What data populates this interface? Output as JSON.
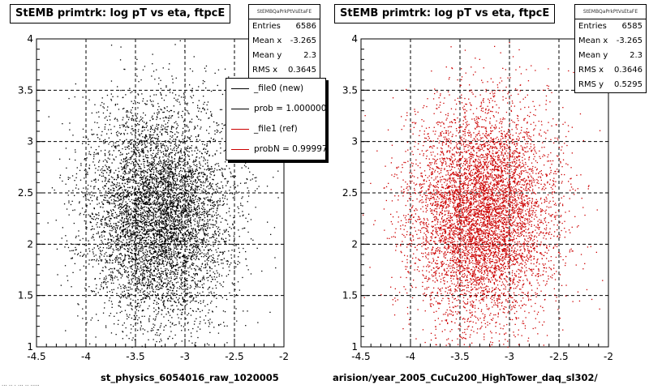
{
  "panels": {
    "left": {
      "title": "StEMB primtrk: log pT vs eta, ftpcE",
      "stats": {
        "name": "StEMBQaPrkPtVsEtaFE",
        "rows": [
          {
            "label": "Entries",
            "value": "6586"
          },
          {
            "label": "Mean x",
            "value": "-3.265"
          },
          {
            "label": "Mean y",
            "value": "2.3"
          },
          {
            "label": "RMS x",
            "value": "0.3645"
          }
        ]
      },
      "legend": [
        {
          "label": "_file0 (new)",
          "color": "#000000"
        },
        {
          "label": "prob = 1.000000",
          "color": "#000000"
        },
        {
          "label": "_file1 (ref)",
          "color": "#cc0000"
        },
        {
          "label": "probN = 0.99997",
          "color": "#cc0000"
        }
      ],
      "xlabel": "st_physics_6054016_raw_1020005"
    },
    "right": {
      "title": "StEMB primtrk: log pT vs eta, ftpcE",
      "stats": {
        "name": "StEMBQaPrkPtVsEtaFE",
        "rows": [
          {
            "label": "Entries",
            "value": "6585"
          },
          {
            "label": "Mean x",
            "value": "-3.265"
          },
          {
            "label": "Mean y",
            "value": "2.3"
          },
          {
            "label": "RMS x",
            "value": "0.3646"
          },
          {
            "label": "RMS y",
            "value": "0.5295"
          }
        ]
      },
      "xlabel": "arision/year_2005_CuCu200_HighTower_daq_sl302/"
    }
  },
  "footer": "... .. . ... .. .....",
  "chart_data": [
    {
      "type": "scatter",
      "title": "StEMB primtrk: log pT vs eta, ftpcE",
      "xlabel": "st_physics_6054016_raw_1020005",
      "ylabel": "",
      "xlim": [
        -4.5,
        -2
      ],
      "ylim": [
        1,
        4
      ],
      "xticks": [
        -4.5,
        -4,
        -3.5,
        -3,
        -2.5,
        -2
      ],
      "yticks": [
        1,
        1.5,
        2,
        2.5,
        3,
        3.5,
        4
      ],
      "grid": true,
      "marker_color": "#000000",
      "series": [
        {
          "name": "_file0 (new)",
          "entries": 6586,
          "mean_x": -3.265,
          "mean_y": 2.3,
          "rms_x": 0.3645
        }
      ],
      "legend_position": "top-right"
    },
    {
      "type": "scatter",
      "title": "StEMB primtrk: log pT vs eta, ftpcE",
      "xlabel": "arision/year_2005_CuCu200_HighTower_daq_sl302/",
      "ylabel": "",
      "xlim": [
        -4.5,
        -2
      ],
      "ylim": [
        1,
        4
      ],
      "xticks": [
        -4.5,
        -4,
        -3.5,
        -3,
        -2.5,
        -2
      ],
      "yticks": [
        1,
        1.5,
        2,
        2.5,
        3,
        3.5,
        4
      ],
      "grid": true,
      "marker_color": "#cc0000",
      "series": [
        {
          "name": "_file1 (ref)",
          "entries": 6585,
          "mean_x": -3.265,
          "mean_y": 2.3,
          "rms_x": 0.3646,
          "rms_y": 0.5295
        }
      ]
    }
  ]
}
